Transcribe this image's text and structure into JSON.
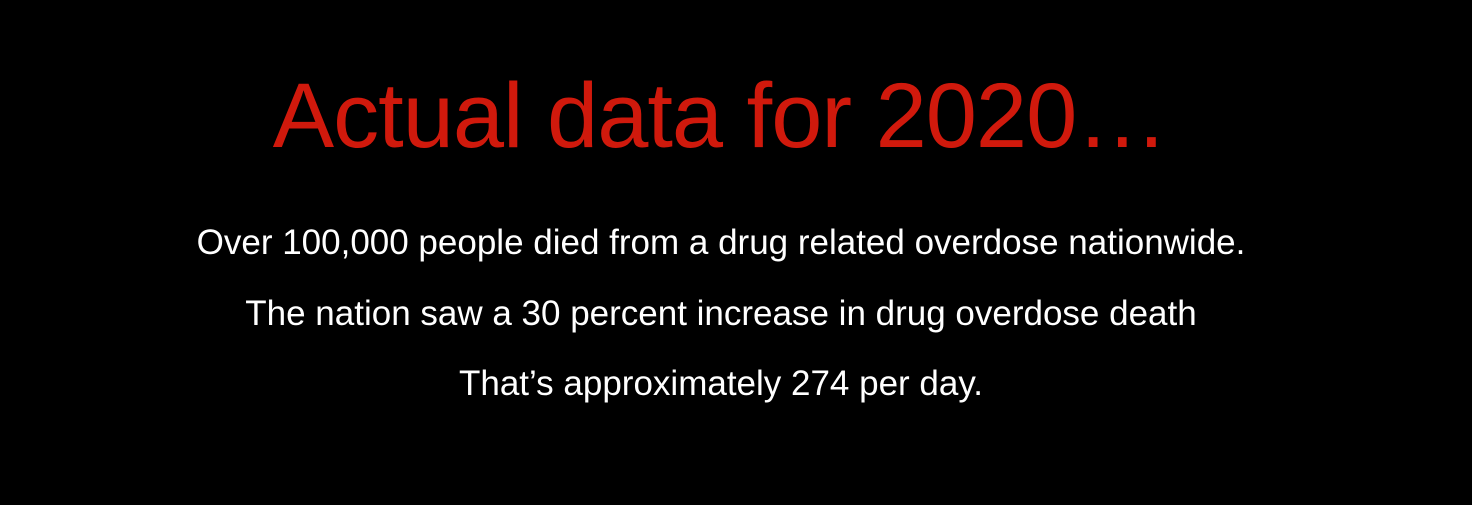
{
  "slide": {
    "title": "Actual data for 2020…",
    "lines": [
      "Over 100,000 people died from a drug related overdose nationwide.",
      "The nation saw a 30 percent increase in drug overdose death",
      "That’s approximately 274 per day."
    ]
  },
  "colors": {
    "background": "#000000",
    "title": "#d0190c",
    "body_text": "#ffffff"
  }
}
